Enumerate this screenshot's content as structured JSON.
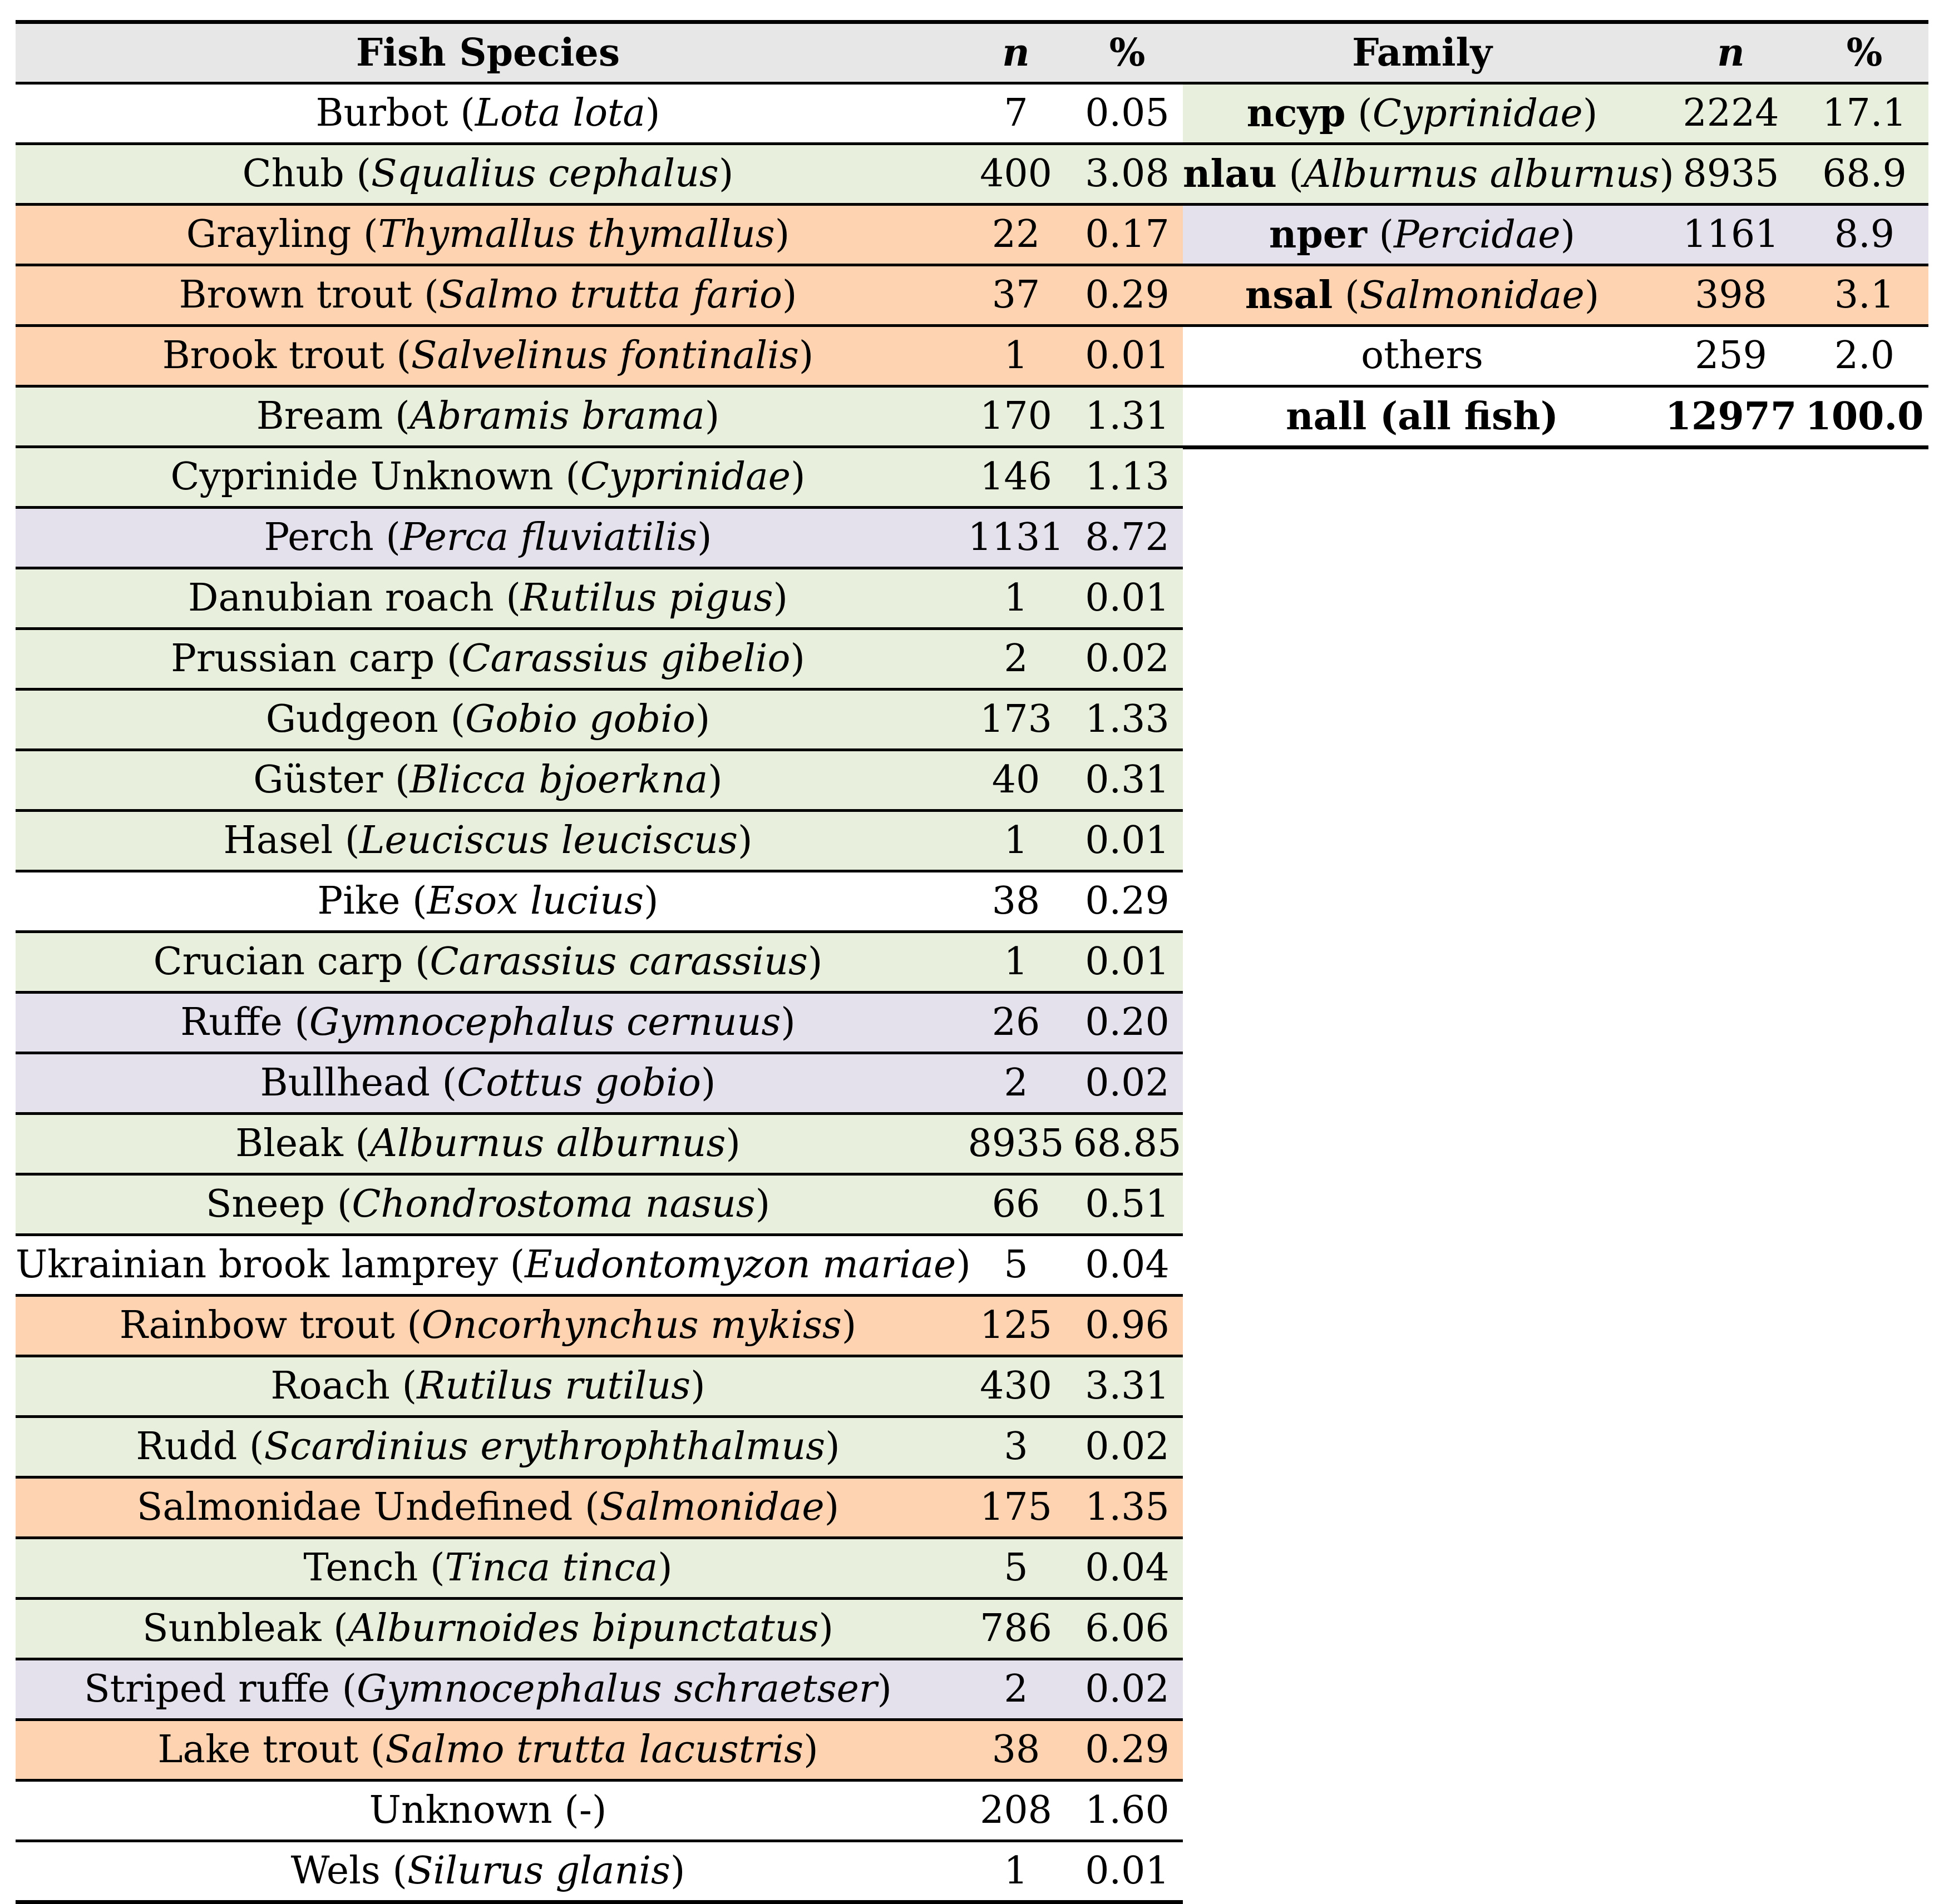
{
  "colors": {
    "header": "#e7e7e7",
    "Cyprinidae": "#e8f0dd",
    "Salmonidae": "#fdd3b1",
    "Percidae": "#e4e0ec",
    "none": "#ffffff"
  },
  "species_table": {
    "headers": {
      "species": "Fish Species",
      "n": "n",
      "pct": "%"
    },
    "rows": [
      {
        "name": "Burbot",
        "sci": "Lota lota",
        "n": "7",
        "pct": "0.05",
        "group": "none"
      },
      {
        "name": "Chub",
        "sci": "Squalius cephalus",
        "n": "400",
        "pct": "3.08",
        "group": "Cyprinidae"
      },
      {
        "name": "Grayling",
        "sci": "Thymallus thymallus",
        "n": "22",
        "pct": "0.17",
        "group": "Salmonidae"
      },
      {
        "name": "Brown trout",
        "sci": "Salmo trutta fario",
        "n": "37",
        "pct": "0.29",
        "group": "Salmonidae"
      },
      {
        "name": "Brook trout",
        "sci": "Salvelinus fontinalis",
        "n": "1",
        "pct": "0.01",
        "group": "Salmonidae"
      },
      {
        "name": "Bream",
        "sci": "Abramis brama",
        "n": "170",
        "pct": "1.31",
        "group": "Cyprinidae"
      },
      {
        "name": "Cyprinide Unknown",
        "sci": "Cyprinidae",
        "n": "146",
        "pct": "1.13",
        "group": "Cyprinidae"
      },
      {
        "name": "Perch",
        "sci": "Perca fluviatilis",
        "n": "1131",
        "pct": "8.72",
        "group": "Percidae"
      },
      {
        "name": "Danubian roach",
        "sci": "Rutilus pigus",
        "n": "1",
        "pct": "0.01",
        "group": "Cyprinidae"
      },
      {
        "name": "Prussian carp",
        "sci": "Carassius gibelio",
        "n": "2",
        "pct": "0.02",
        "group": "Cyprinidae"
      },
      {
        "name": "Gudgeon",
        "sci": "Gobio gobio",
        "n": "173",
        "pct": "1.33",
        "group": "Cyprinidae"
      },
      {
        "name": "Güster",
        "sci": "Blicca bjoerkna",
        "n": "40",
        "pct": "0.31",
        "group": "Cyprinidae"
      },
      {
        "name": "Hasel",
        "sci": "Leuciscus leuciscus",
        "n": "1",
        "pct": "0.01",
        "group": "Cyprinidae"
      },
      {
        "name": "Pike",
        "sci": "Esox lucius",
        "n": "38",
        "pct": "0.29",
        "group": "none"
      },
      {
        "name": "Crucian carp",
        "sci": "Carassius carassius",
        "n": "1",
        "pct": "0.01",
        "group": "Cyprinidae"
      },
      {
        "name": "Ruffe",
        "sci": "Gymnocephalus cernuus",
        "n": "26",
        "pct": "0.20",
        "group": "Percidae"
      },
      {
        "name": "Bullhead",
        "sci": "Cottus gobio",
        "n": "2",
        "pct": "0.02",
        "group": "Percidae"
      },
      {
        "name": "Bleak",
        "sci": "Alburnus alburnus",
        "n": "8935",
        "pct": "68.85",
        "group": "Cyprinidae"
      },
      {
        "name": "Sneep",
        "sci": "Chondrostoma nasus",
        "n": "66",
        "pct": "0.51",
        "group": "Cyprinidae"
      },
      {
        "name": "Ukrainian brook lamprey",
        "sci": "Eudontomyzon mariae",
        "n": "5",
        "pct": "0.04",
        "group": "none"
      },
      {
        "name": "Rainbow trout",
        "sci": "Oncorhynchus mykiss",
        "n": "125",
        "pct": "0.96",
        "group": "Salmonidae"
      },
      {
        "name": "Roach",
        "sci": "Rutilus rutilus",
        "n": "430",
        "pct": "3.31",
        "group": "Cyprinidae"
      },
      {
        "name": "Rudd",
        "sci": "Scardinius erythrophthalmus",
        "n": "3",
        "pct": "0.02",
        "group": "Cyprinidae"
      },
      {
        "name": "Salmonidae Undefined",
        "sci": "Salmonidae",
        "n": "175",
        "pct": "1.35",
        "group": "Salmonidae"
      },
      {
        "name": "Tench",
        "sci": "Tinca tinca",
        "n": "5",
        "pct": "0.04",
        "group": "Cyprinidae"
      },
      {
        "name": "Sunbleak",
        "sci": "Alburnoides bipunctatus",
        "n": "786",
        "pct": "6.06",
        "group": "Cyprinidae"
      },
      {
        "name": "Striped ruffe",
        "sci": "Gymnocephalus schraetser",
        "n": "2",
        "pct": "0.02",
        "group": "Percidae"
      },
      {
        "name": "Lake trout",
        "sci": "Salmo trutta lacustris",
        "n": "38",
        "pct": "0.29",
        "group": "Salmonidae"
      },
      {
        "name": "Unknown",
        "sci": "-",
        "n": "208",
        "pct": "1.60",
        "group": "none",
        "sci_italic": false
      },
      {
        "name": "Wels",
        "sci": "Silurus glanis",
        "n": "1",
        "pct": "0.01",
        "group": "none"
      }
    ]
  },
  "family_table": {
    "headers": {
      "family": "Family",
      "n": "n",
      "pct": "%"
    },
    "rows": [
      {
        "code": "ncyp",
        "sci": "Cyprinidae",
        "n": "2224",
        "pct": "17.1",
        "group": "Cyprinidae"
      },
      {
        "code": "nlau",
        "sci": "Alburnus alburnus",
        "n": "8935",
        "pct": "68.9",
        "group": "Cyprinidae"
      },
      {
        "code": "nper",
        "sci": "Percidae",
        "n": "1161",
        "pct": "8.9",
        "group": "Percidae"
      },
      {
        "code": "nsal",
        "sci": "Salmonidae",
        "n": "398",
        "pct": "3.1",
        "group": "Salmonidae"
      },
      {
        "plain": "others",
        "n": "259",
        "pct": "2.0",
        "group": "none"
      },
      {
        "plain": "nall (all fish)",
        "n": "12977",
        "pct": "100.0",
        "group": "none",
        "bold": true
      }
    ]
  }
}
